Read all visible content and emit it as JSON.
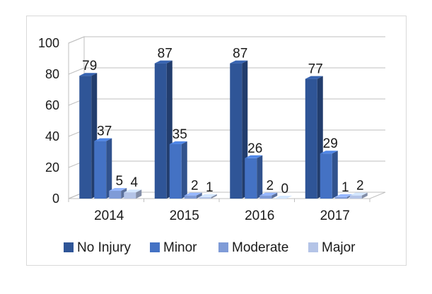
{
  "chart_data": {
    "type": "bar",
    "style": "3d-clustered-column",
    "categories": [
      "2014",
      "2015",
      "2016",
      "2017"
    ],
    "series": [
      {
        "name": "No Injury",
        "values": [
          79,
          87,
          87,
          77
        ],
        "color": "#2f5597"
      },
      {
        "name": "Minor",
        "values": [
          37,
          35,
          26,
          29
        ],
        "color": "#4472c4"
      },
      {
        "name": "Moderate",
        "values": [
          5,
          2,
          2,
          1
        ],
        "color": "#7f9bd7"
      },
      {
        "name": "Major",
        "values": [
          4,
          1,
          0,
          2
        ],
        "color": "#b4c4e7"
      }
    ],
    "data_labels": [
      [
        "79",
        "37",
        "5",
        "4"
      ],
      [
        "87",
        "35",
        "2",
        "1"
      ],
      [
        "87",
        "26",
        "2",
        "0"
      ],
      [
        "77",
        "29",
        "1",
        "2"
      ]
    ],
    "yticks": [
      "0",
      "20",
      "40",
      "60",
      "80",
      "100"
    ],
    "ylim": [
      0,
      100
    ],
    "title": "",
    "xlabel": "",
    "ylabel": "",
    "grid": true,
    "legend_position": "bottom"
  }
}
